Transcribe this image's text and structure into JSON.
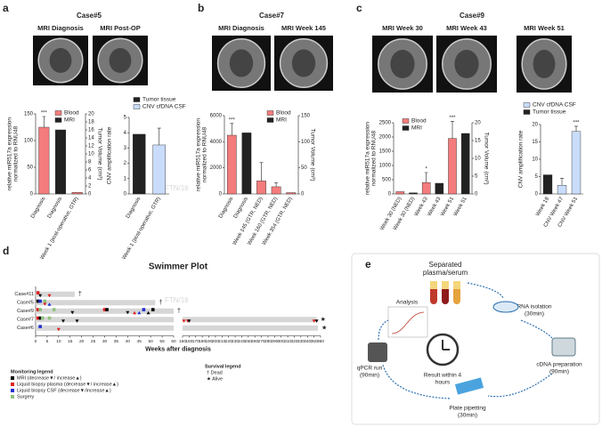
{
  "panels": [
    {
      "label": "a",
      "case": "Case#5",
      "images": [
        "MRI Diagnosis",
        "MRI Post-OP"
      ],
      "charts": [
        {
          "type": "bar",
          "y_label": [
            "relative miR517a expression",
            "normalized to RNU48"
          ],
          "y2_label": "Tumor Volume (cm³)",
          "categories": [
            "Diagnosis",
            "Diagnosis",
            "Week 1 (post-operative, GTR)"
          ],
          "series": [
            {
              "name": "Blood",
              "color": "#f47c7c",
              "values": [
                125,
                null,
                3
              ],
              "errors": [
                20,
                null,
                null
              ]
            },
            {
              "name": "MRI",
              "color": "#222222",
              "values": [
                null,
                16,
                null
              ],
              "axis": "y2"
            }
          ],
          "significance": [
            "***",
            null,
            null
          ],
          "ylim": [
            0,
            150
          ],
          "yticks": [
            0,
            50,
            100,
            150
          ],
          "y2lim": [
            0,
            20
          ],
          "y2ticks": [
            0,
            2,
            4,
            6,
            8,
            10,
            12,
            14,
            16,
            18,
            20
          ]
        },
        {
          "type": "bar",
          "y_label": [
            "CNV amplification rate"
          ],
          "categories": [
            "Diagnosis",
            "Week 1 (post-operative, GTR)"
          ],
          "series": [
            {
              "name": "Tumor tissue",
              "color": "#222222",
              "values": [
                3.9,
                null
              ]
            },
            {
              "name": "CNV cfDNA CSF",
              "color": "#c9dcfb",
              "values": [
                null,
                3.2
              ],
              "errors": [
                null,
                1.1
              ]
            }
          ],
          "ylim": [
            0,
            5
          ],
          "yticks": [
            0,
            1,
            2,
            3,
            4,
            5
          ]
        }
      ]
    },
    {
      "label": "b",
      "case": "Case#7",
      "images": [
        "MRI Diagnosis",
        "MRI Week 145"
      ],
      "charts": [
        {
          "type": "bar",
          "y_label": [
            "relative miR517a expression",
            "normalized to RNU48"
          ],
          "y2_label": "Tumor Volume (cm³)",
          "categories": [
            "Diagnosis",
            "Diagnosis",
            "Week 145 (GTR, NED)",
            "Week 160 (GTR, NED)",
            "Week 354 (GTR, NED)"
          ],
          "series": [
            {
              "name": "Blood",
              "color": "#f47c7c",
              "values": [
                4500,
                null,
                1000,
                550,
                100
              ],
              "errors": [
                900,
                null,
                1400,
                300,
                null
              ]
            },
            {
              "name": "MRI",
              "color": "#222222",
              "values": [
                null,
                117,
                null,
                null,
                null
              ],
              "axis": "y2"
            }
          ],
          "significance": [
            "***",
            null,
            null,
            null,
            null
          ],
          "ylim": [
            0,
            6000
          ],
          "yticks": [
            0,
            2000,
            4000,
            6000
          ],
          "y2lim": [
            0,
            150
          ],
          "y2ticks": [
            0,
            50,
            100,
            150
          ]
        }
      ]
    },
    {
      "label": "c",
      "case": "Case#9",
      "images": [
        "MRI Week 30",
        "MRI Week 43",
        "MRI Week 51"
      ],
      "charts": [
        {
          "type": "bar",
          "y_label": [
            "relative miR517a expression",
            "normalized to RNU48"
          ],
          "y2_label": "Tumor Volume (cm³)",
          "categories": [
            "Week 30 (NED)",
            "Week 30 (NED)",
            "Week 43",
            "Week 43",
            "Week 51",
            "Week 51"
          ],
          "series": [
            {
              "name": "Blood",
              "color": "#f47c7c",
              "values": [
                80,
                null,
                400,
                null,
                1950,
                null
              ],
              "errors": [
                null,
                null,
                350,
                null,
                600,
                null
              ]
            },
            {
              "name": "MRI",
              "color": "#222222",
              "values": [
                null,
                0.3,
                null,
                3,
                null,
                17
              ],
              "axis": "y2"
            }
          ],
          "significance": [
            null,
            null,
            "*",
            null,
            "***",
            null
          ],
          "ylim": [
            0,
            2500
          ],
          "yticks": [
            0,
            500,
            1000,
            1500,
            2000,
            2500
          ],
          "y2lim": [
            0,
            20
          ],
          "y2ticks": [
            0,
            5,
            10,
            15,
            20
          ]
        },
        {
          "type": "bar",
          "y_label": [
            "CNV amplification rate"
          ],
          "categories": [
            "Week 18",
            "CNV Week 47",
            "CNV Week 51"
          ],
          "series": [
            {
              "name": "CNV cfDNA CSF",
              "color": "#c9dcfb",
              "values": [
                null,
                2.5,
                18
              ],
              "errors": [
                null,
                2,
                1.5
              ]
            },
            {
              "name": "Tumor tissue",
              "color": "#222222",
              "values": [
                5.5,
                null,
                null
              ]
            }
          ],
          "significance": [
            null,
            null,
            "***"
          ],
          "ylim": [
            0,
            20
          ],
          "yticks": [
            0,
            5,
            10,
            15,
            20
          ]
        }
      ]
    }
  ],
  "swimmer": {
    "type": "swimmer",
    "label": "d",
    "title": "Swimmer Plot",
    "x_label": "Weeks after diagnosis",
    "xlim": [
      0,
      60
    ],
    "xticks": [
      0,
      5,
      10,
      15,
      20,
      25,
      30,
      35,
      40,
      45,
      50,
      55,
      60
    ],
    "x2lim": [
      150,
      360
    ],
    "x2ticks": [
      150,
      160,
      170,
      180,
      190,
      200,
      210,
      220,
      230,
      240,
      250,
      260,
      270,
      280,
      290,
      300,
      310,
      320,
      330,
      340,
      350,
      360
    ],
    "cases": [
      {
        "name": "Case#11",
        "weeks": 17,
        "end": "†",
        "events": [
          {
            "week": 1,
            "color": "#e02020",
            "marker": "square"
          },
          {
            "week": 2,
            "color": "#000000",
            "marker": "down"
          },
          {
            "week": 6,
            "color": "#e02020",
            "marker": "down"
          }
        ]
      },
      {
        "name": "Case#5",
        "weeks": 52,
        "end": "†",
        "events": [
          {
            "week": 1,
            "color": "#000000",
            "marker": "square"
          },
          {
            "week": 2,
            "color": "#2030d0",
            "marker": "square"
          },
          {
            "week": 4,
            "color": "#e02020",
            "marker": "down"
          },
          {
            "week": 6,
            "color": "#2030d0",
            "marker": "up"
          },
          {
            "week": 4,
            "color": "#8ec07c",
            "marker": "square"
          }
        ]
      },
      {
        "name": "Case#9",
        "weeks": 60,
        "end": "†",
        "events": [
          {
            "week": 1,
            "color": "#e02020",
            "marker": "square"
          },
          {
            "week": 2,
            "color": "#8ec07c",
            "marker": "square"
          },
          {
            "week": 8,
            "color": "#8ec07c",
            "marker": "square"
          },
          {
            "week": 16,
            "color": "#000000",
            "marker": "down"
          },
          {
            "week": 30,
            "color": "#e02020",
            "marker": "square"
          },
          {
            "week": 31,
            "color": "#000000",
            "marker": "square"
          },
          {
            "week": 40,
            "color": "#000000",
            "marker": "down"
          },
          {
            "week": 43,
            "color": "#e02020",
            "marker": "up"
          },
          {
            "week": 45,
            "color": "#2030d0",
            "marker": "up"
          },
          {
            "week": 47,
            "color": "#2030d0",
            "marker": "square"
          },
          {
            "week": 49,
            "color": "#000000",
            "marker": "up"
          },
          {
            "week": 51,
            "color": "#000000",
            "marker": "square"
          }
        ]
      },
      {
        "name": "Case#7",
        "weeks": 354,
        "end": "★",
        "events": [
          {
            "week": 1,
            "color": "#e02020",
            "marker": "square"
          },
          {
            "week": 2,
            "color": "#000000",
            "marker": "square"
          },
          {
            "week": 3,
            "color": "#8ec07c",
            "marker": "square"
          },
          {
            "week": 6,
            "color": "#8ec07c",
            "marker": "square"
          },
          {
            "week": 12,
            "color": "#000000",
            "marker": "down"
          },
          {
            "week": 18,
            "color": "#000000",
            "marker": "down"
          },
          {
            "week": 152,
            "color": "#e02020",
            "marker": "down"
          },
          {
            "week": 158,
            "color": "#e02020",
            "marker": "down"
          },
          {
            "week": 160,
            "color": "#000000",
            "marker": "down"
          },
          {
            "week": 350,
            "color": "#e02020",
            "marker": "down"
          },
          {
            "week": 354,
            "color": "#000000",
            "marker": "down"
          }
        ]
      },
      {
        "name": "Case#6",
        "weeks": 356,
        "end": "★",
        "events": [
          {
            "week": 2,
            "color": "#2030d0",
            "marker": "square"
          },
          {
            "week": 10,
            "color": "#e02020",
            "marker": "down"
          }
        ]
      }
    ],
    "legend": {
      "title": "Monitoring legend",
      "items": [
        {
          "color": "#000000",
          "text": "MRI  (decrease▼/ increase▲)"
        },
        {
          "color": "#e02020",
          "text": "Liquid biopsy plasma (decrease▼/ increase▲)"
        },
        {
          "color": "#2030d0",
          "text": "Liquid biopsy CSF (decrease▼/increase▲)"
        },
        {
          "color": "#8ec07c",
          "text": "Surgery"
        }
      ]
    },
    "survival_legend": {
      "title": "Survival legend",
      "items": [
        "† Dead",
        "★ Alive"
      ]
    }
  },
  "workflow": {
    "label": "e",
    "title": [
      "Separated",
      "plasma/serum"
    ],
    "steps": [
      [
        "RNA isolation",
        "(30min)"
      ],
      [
        "cDNA preparation",
        "(90min)"
      ],
      [
        "Plate pipetting",
        "(30min)"
      ],
      [
        "qPCR run",
        "(90min)"
      ]
    ],
    "analysis": "Analysis",
    "result": [
      "Result within 4",
      "hours"
    ]
  },
  "watermarks": [
    "FTN/16",
    "FTN/16"
  ]
}
